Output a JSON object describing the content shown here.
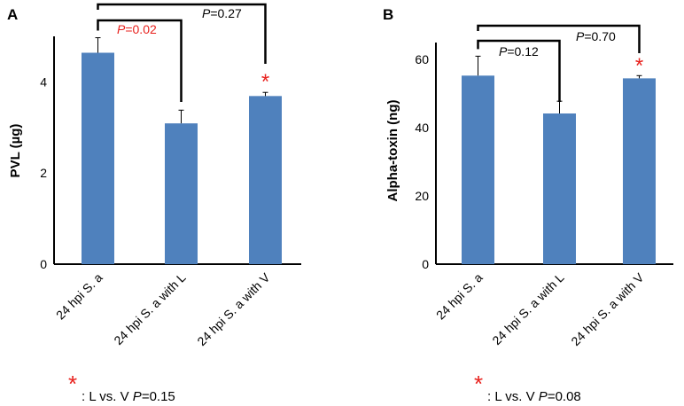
{
  "chart_data": [
    {
      "type": "bar",
      "panel_label": "A",
      "title": "",
      "xlabel": "",
      "ylabel": "PVL (µg)",
      "ylim": [
        0,
        5
      ],
      "yticks": [
        "0",
        "2",
        "4"
      ],
      "ytick_values": [
        0,
        2,
        4
      ],
      "categories": [
        "24 hpi S. a",
        "24 hpi S. a with L",
        "24 hpi S. a with V"
      ],
      "values": [
        4.64,
        3.09,
        3.69
      ],
      "errors": [
        0.33,
        0.29,
        0.08
      ],
      "bar_color": "#4f81bd",
      "comparisons": [
        {
          "from": 0,
          "to": 1,
          "p_prefix": "P",
          "p_value": "=0.02",
          "color": "#e8211d"
        },
        {
          "from": 0,
          "to": 2,
          "p_prefix": "P",
          "p_value": "=0.27",
          "color": "#000000"
        }
      ],
      "star_on": 2,
      "star": "*",
      "footnote": {
        "star": "*",
        "text": ": L vs. V ",
        "p_prefix": "P",
        "p_value": "=0.15"
      }
    },
    {
      "type": "bar",
      "panel_label": "B",
      "title": "",
      "xlabel": "",
      "ylabel": "Alpha-toxin (ng)",
      "ylim": [
        0,
        65
      ],
      "yticks": [
        "0",
        "20",
        "40",
        "60"
      ],
      "ytick_values": [
        0,
        20,
        40,
        60
      ],
      "categories": [
        "24 hpi S. a",
        "24 hpi S. a with L",
        "24 hpi S. a with V"
      ],
      "values": [
        55.3,
        44.2,
        54.5
      ],
      "errors": [
        5.7,
        3.6,
        0.8
      ],
      "bar_color": "#4f81bd",
      "comparisons": [
        {
          "from": 0,
          "to": 1,
          "p_prefix": "P",
          "p_value": "=0.12",
          "color": "#000000"
        },
        {
          "from": 0,
          "to": 2,
          "p_prefix": "P",
          "p_value": "=0.70",
          "color": "#000000"
        }
      ],
      "star_on": 2,
      "star": "*",
      "footnote": {
        "star": "*",
        "text": ": L vs. V ",
        "p_prefix": "P",
        "p_value": "=0.08"
      }
    }
  ]
}
